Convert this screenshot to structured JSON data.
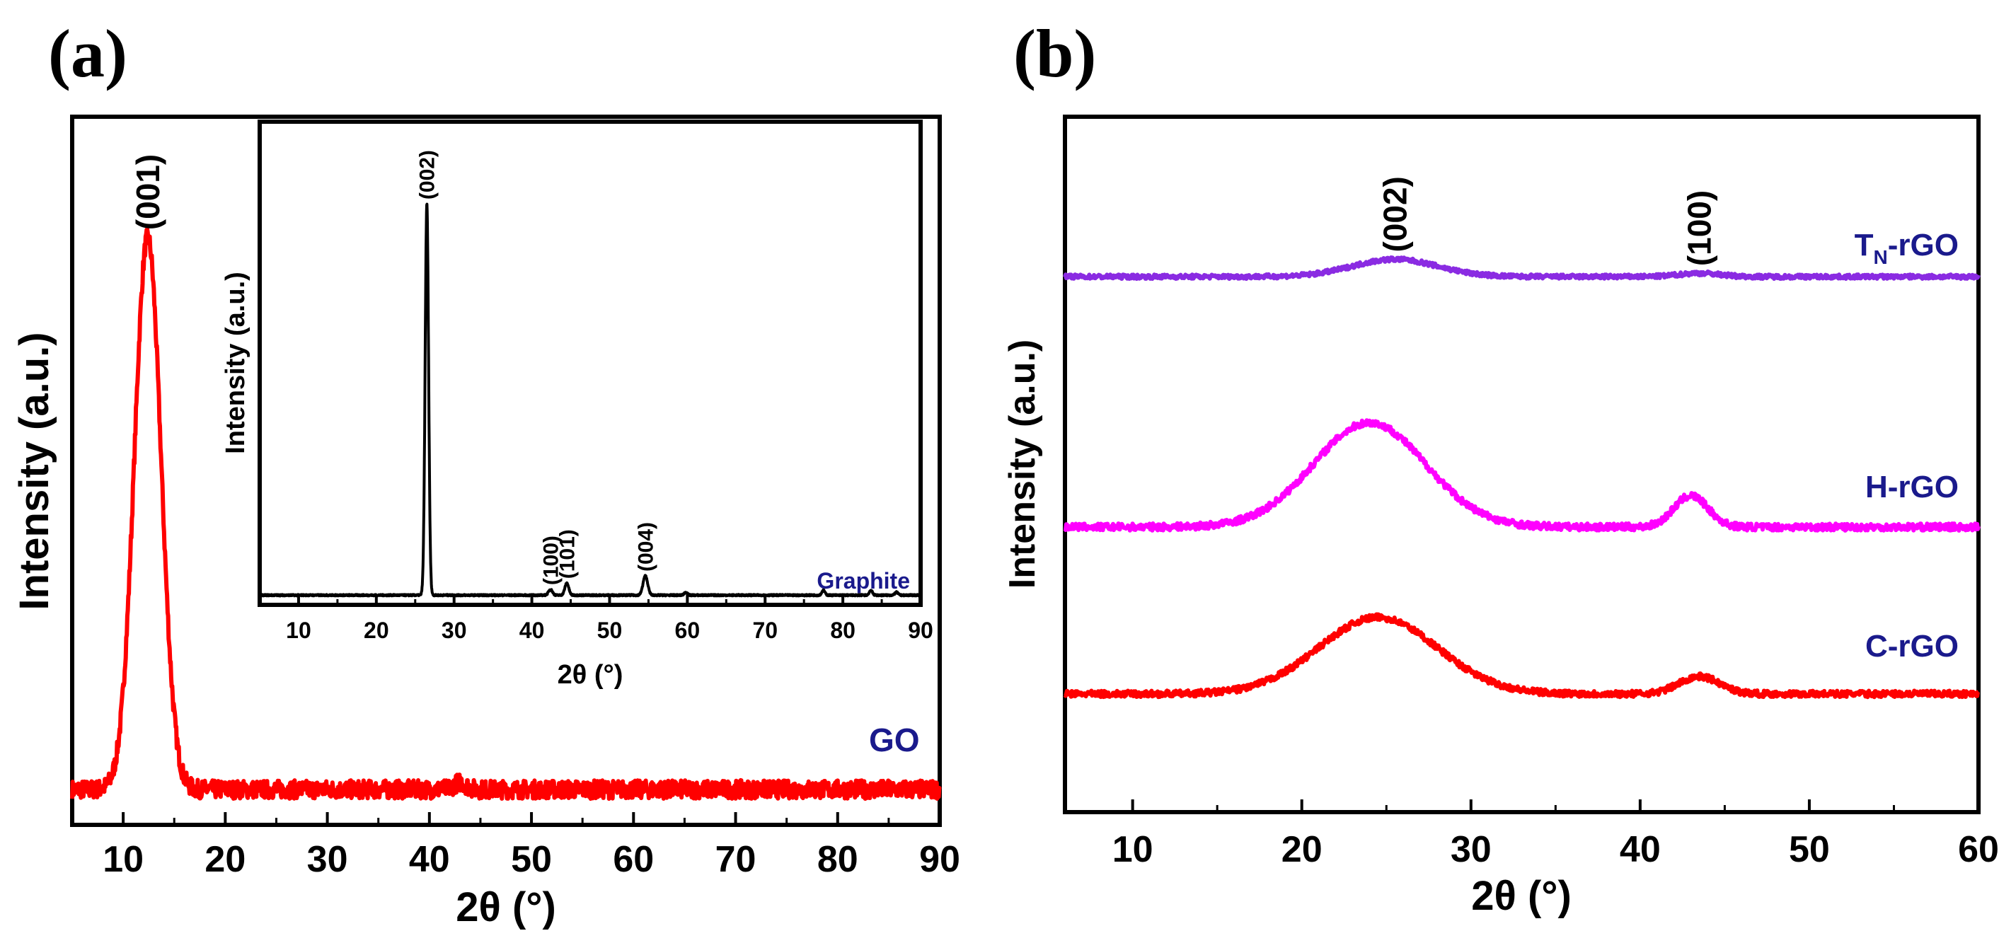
{
  "panel_a": {
    "label": "(a)"
  },
  "panel_b": {
    "label": "(b)"
  },
  "colors": {
    "go": "#ff0000",
    "graphite": "#000000",
    "tn_rgo": "#8a2be2",
    "h_rgo": "#ff00ff",
    "c_rgo": "#ff0000",
    "label_blue": "#1a1a8c"
  },
  "chart_data": [
    {
      "id": "a_main",
      "type": "line",
      "title": "",
      "xlabel": "2θ (°)",
      "ylabel": "Intensity (a.u.)",
      "xlim": [
        5,
        90
      ],
      "ylim": [
        0,
        100
      ],
      "xticks": [
        10,
        20,
        30,
        40,
        50,
        60,
        70,
        80,
        90
      ],
      "series": [
        {
          "name": "GO",
          "color": "#ff0000",
          "baseline": 5,
          "peaks": [
            {
              "center": 12.4,
              "height": 78,
              "width": 1.3
            },
            {
              "center": 43,
              "height": 1,
              "width": 0.6
            }
          ],
          "noise": 1.3
        }
      ],
      "peak_labels": [
        {
          "x": 12.4,
          "text": "(001)"
        }
      ]
    },
    {
      "id": "a_inset",
      "type": "line",
      "title": "",
      "xlabel": "2θ (°)",
      "ylabel": "Intensity (a.u.)",
      "xlim": [
        5,
        90
      ],
      "ylim": [
        0,
        100
      ],
      "xticks": [
        10,
        20,
        30,
        40,
        50,
        60,
        70,
        80,
        90
      ],
      "series": [
        {
          "name": "Graphite",
          "color": "#000000",
          "baseline": 2,
          "peaks": [
            {
              "center": 26.5,
              "height": 81,
              "width": 0.22
            },
            {
              "center": 42.4,
              "height": 1.2,
              "width": 0.25
            },
            {
              "center": 44.5,
              "height": 2.5,
              "width": 0.25
            },
            {
              "center": 54.6,
              "height": 4,
              "width": 0.3
            },
            {
              "center": 59.8,
              "height": 0.6,
              "width": 0.2
            },
            {
              "center": 77.5,
              "height": 1,
              "width": 0.2
            },
            {
              "center": 83.6,
              "height": 1,
              "width": 0.2
            },
            {
              "center": 86.9,
              "height": 0.6,
              "width": 0.2
            }
          ],
          "noise": 0.15
        }
      ],
      "peak_labels": [
        {
          "x": 26.5,
          "text": "(002)"
        },
        {
          "x": 42.4,
          "text": "(100)"
        },
        {
          "x": 44.5,
          "text": "(101)"
        },
        {
          "x": 54.6,
          "text": "(004)"
        }
      ]
    },
    {
      "id": "b_main",
      "type": "line",
      "title": "",
      "xlabel": "2θ (°)",
      "ylabel": "Intensity (a.u.)",
      "xlim": [
        6,
        60
      ],
      "ylim": [
        0,
        100
      ],
      "xticks": [
        10,
        20,
        30,
        40,
        50,
        60
      ],
      "series": [
        {
          "name": "TN-rGO",
          "color": "#8a2be2",
          "baseline": 77,
          "peaks": [
            {
              "center": 25.5,
              "height": 2.5,
              "width": 2.5
            },
            {
              "center": 43.5,
              "height": 0.5,
              "width": 1.2
            }
          ],
          "noise": 0.3
        },
        {
          "name": "H-rGO",
          "color": "#ff00ff",
          "baseline": 41,
          "peaks": [
            {
              "center": 24,
              "height": 15,
              "width": 3.3
            },
            {
              "center": 43,
              "height": 4.5,
              "width": 1.0
            }
          ],
          "noise": 0.5
        },
        {
          "name": "C-rGO",
          "color": "#ff0000",
          "baseline": 17,
          "peaks": [
            {
              "center": 24.5,
              "height": 11,
              "width": 3.5
            },
            {
              "center": 43.5,
              "height": 2.5,
              "width": 1.2
            }
          ],
          "noise": 0.45
        }
      ],
      "peak_labels": [
        {
          "x": 25.5,
          "text": "(002)"
        },
        {
          "x": 43.5,
          "text": "(100)"
        }
      ]
    }
  ],
  "sample_labels": {
    "go": "GO",
    "graphite": "Graphite",
    "tn_main": "T",
    "tn_sub": "N",
    "tn_rest": "-rGO",
    "h": "H-rGO",
    "c": "C-rGO"
  }
}
